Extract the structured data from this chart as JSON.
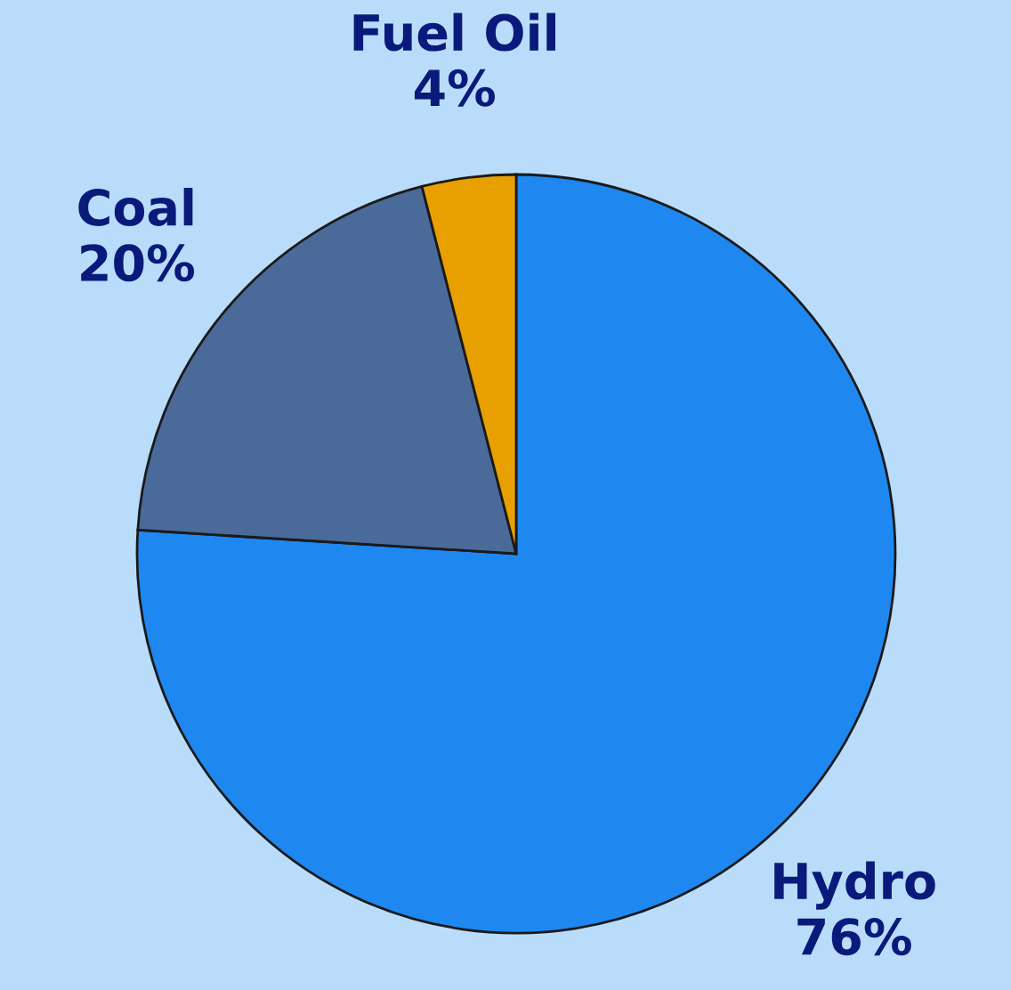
{
  "chart_data": {
    "type": "pie",
    "categories": [
      "Hydro",
      "Coal",
      "Fuel Oil"
    ],
    "values": [
      76,
      20,
      4
    ],
    "value_labels": [
      "76%",
      "20%",
      "4%"
    ],
    "colors": [
      "#1e88f0",
      "#4a6a9a",
      "#e8a000"
    ]
  }
}
